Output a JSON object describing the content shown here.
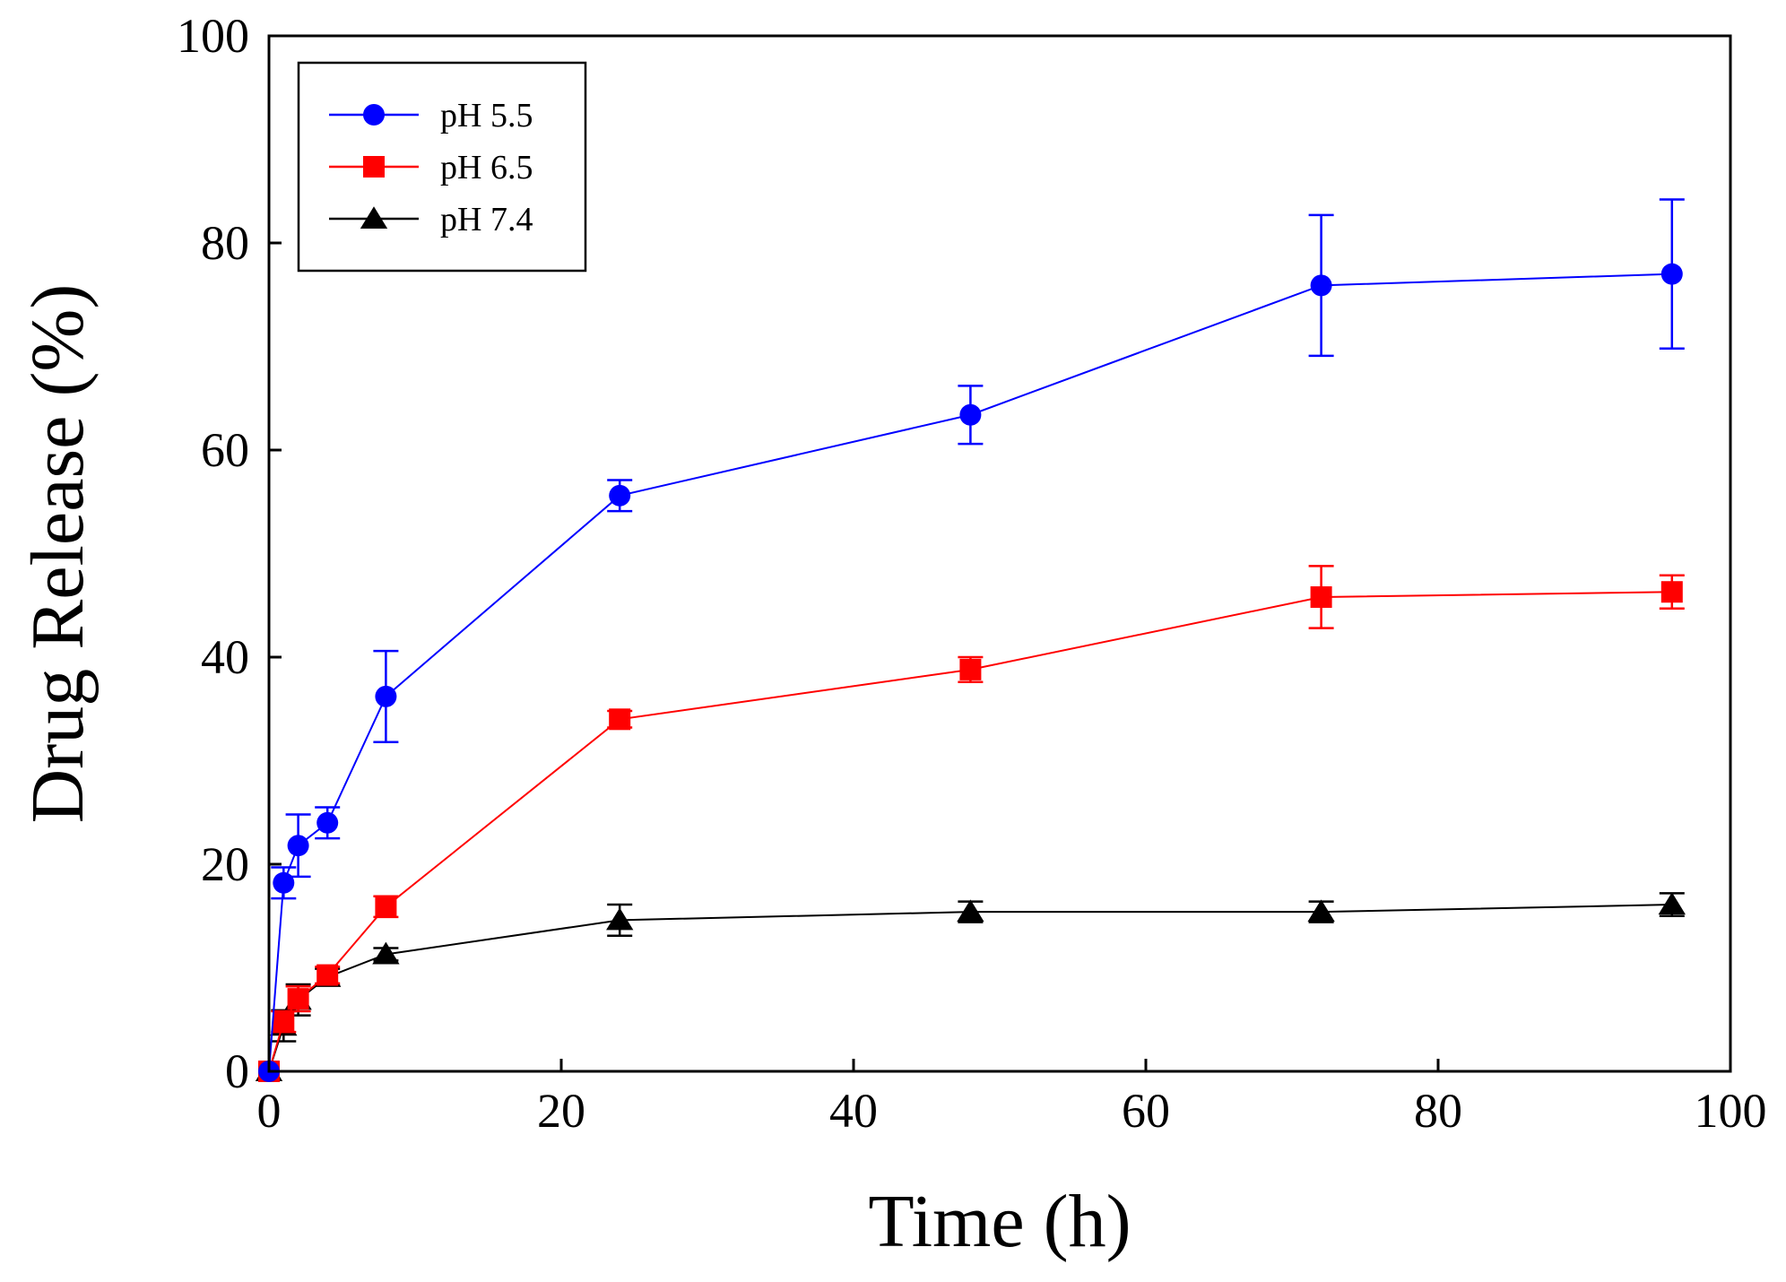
{
  "chart_data": {
    "type": "line",
    "title": "",
    "xlabel": "Time (h)",
    "ylabel": "Drug Release (%)",
    "xlim": [
      0,
      100
    ],
    "ylim": [
      0,
      100
    ],
    "xticks": [
      0,
      20,
      40,
      60,
      80,
      100
    ],
    "yticks": [
      0,
      20,
      40,
      60,
      80,
      100
    ],
    "xtick_labels": [
      "0",
      "20",
      "40",
      "60",
      "80",
      "100"
    ],
    "ytick_labels": [
      "0",
      "20",
      "40",
      "60",
      "80",
      "100"
    ],
    "grid": false,
    "legend_position": "top-left",
    "x": [
      0,
      1,
      2,
      4,
      8,
      24,
      48,
      72,
      96
    ],
    "series": [
      {
        "name": "pH 5.5",
        "color": "#0000ff",
        "marker": "circle",
        "values": [
          0,
          18.2,
          21.8,
          24.0,
          36.2,
          55.6,
          63.4,
          75.9,
          77.0
        ],
        "errors": [
          0,
          1.5,
          3.0,
          1.5,
          4.4,
          1.5,
          2.8,
          6.8,
          7.2
        ]
      },
      {
        "name": "pH 6.5",
        "color": "#ff0000",
        "marker": "square",
        "values": [
          0,
          4.8,
          7.0,
          9.3,
          15.9,
          34.0,
          38.8,
          45.8,
          46.3
        ],
        "errors": [
          0,
          1.0,
          1.2,
          0.8,
          1.0,
          0.8,
          1.2,
          3.0,
          1.6
        ]
      },
      {
        "name": "pH 7.4",
        "color": "#000000",
        "marker": "triangle",
        "values": [
          0,
          4.4,
          6.9,
          9.1,
          11.3,
          14.6,
          15.4,
          15.4,
          16.1
        ],
        "errors": [
          0,
          1.5,
          1.5,
          0.8,
          0.6,
          1.5,
          1.0,
          1.0,
          1.1
        ]
      }
    ]
  }
}
